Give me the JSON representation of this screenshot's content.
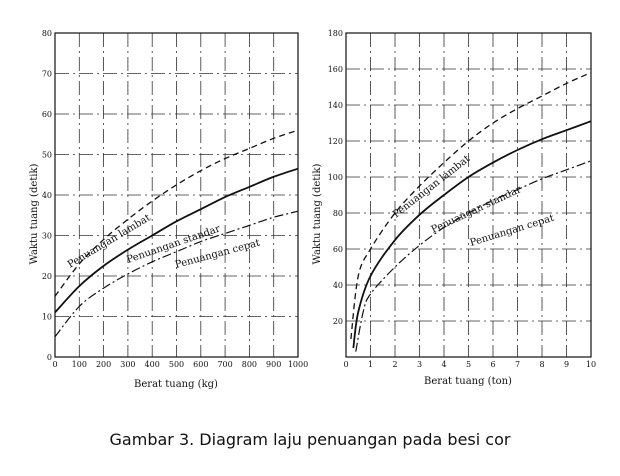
{
  "caption": "Gambar 3. Diagram laju penuangan pada besi cor",
  "chart_data": [
    {
      "type": "line",
      "xlabel": "Berat tuang (kg)",
      "ylabel": "Waktu tuang (detik)",
      "xlim": [
        0,
        1000
      ],
      "ylim": [
        0,
        80
      ],
      "xticks": [
        0,
        100,
        200,
        300,
        400,
        500,
        600,
        700,
        800,
        900,
        1000
      ],
      "yticks": [
        0,
        10,
        20,
        30,
        40,
        50,
        60,
        70,
        80
      ],
      "grid": true,
      "series": [
        {
          "name": "Penuangan lambat",
          "style": "dashed",
          "x": [
            0,
            100,
            200,
            300,
            400,
            500,
            600,
            700,
            800,
            900,
            1000
          ],
          "y": [
            15,
            23,
            29,
            34,
            38.5,
            42.5,
            46,
            49,
            51.5,
            54,
            56
          ]
        },
        {
          "name": "Penuangan standar",
          "style": "solid",
          "x": [
            0,
            100,
            200,
            300,
            400,
            500,
            600,
            700,
            800,
            900,
            1000
          ],
          "y": [
            11,
            17.5,
            22.5,
            26.5,
            30,
            33.5,
            36.5,
            39.5,
            42,
            44.5,
            46.5
          ]
        },
        {
          "name": "Penuangan cepat",
          "style": "dashdot",
          "x": [
            0,
            100,
            200,
            300,
            400,
            500,
            600,
            700,
            800,
            900,
            1000
          ],
          "y": [
            5,
            12.5,
            17,
            20.5,
            23.5,
            26,
            28.5,
            30.5,
            32.5,
            34.5,
            36
          ]
        }
      ]
    },
    {
      "type": "line",
      "xlabel": "Berat tuang (ton)",
      "ylabel": "Waktu tuang (detik)",
      "xlim": [
        0,
        10
      ],
      "ylim": [
        0,
        180
      ],
      "xticks": [
        0,
        1,
        2,
        3,
        4,
        5,
        6,
        7,
        8,
        9,
        10
      ],
      "yticks": [
        20,
        40,
        60,
        80,
        100,
        120,
        140,
        160,
        180
      ],
      "grid": true,
      "series": [
        {
          "name": "Penuangan lambat",
          "style": "dashed",
          "x": [
            0.2,
            0.5,
            1,
            2,
            3,
            4,
            5,
            6,
            7,
            8,
            9,
            10
          ],
          "y": [
            10,
            45,
            60,
            80,
            95,
            108,
            120,
            130,
            138,
            145,
            152,
            158
          ]
        },
        {
          "name": "Penuangan standar",
          "style": "solid",
          "x": [
            0.3,
            0.5,
            1,
            2,
            3,
            4,
            5,
            6,
            7,
            8,
            9,
            10
          ],
          "y": [
            5,
            25,
            45,
            65,
            79,
            90,
            100,
            108,
            115,
            121,
            126,
            131
          ]
        },
        {
          "name": "Penuangan cepat",
          "style": "dashdot",
          "x": [
            0.4,
            0.7,
            1,
            2,
            3,
            4,
            5,
            6,
            7,
            8,
            9,
            10
          ],
          "y": [
            3,
            25,
            35,
            50,
            62,
            72,
            80,
            87,
            93,
            99,
            104,
            109
          ]
        }
      ]
    }
  ]
}
